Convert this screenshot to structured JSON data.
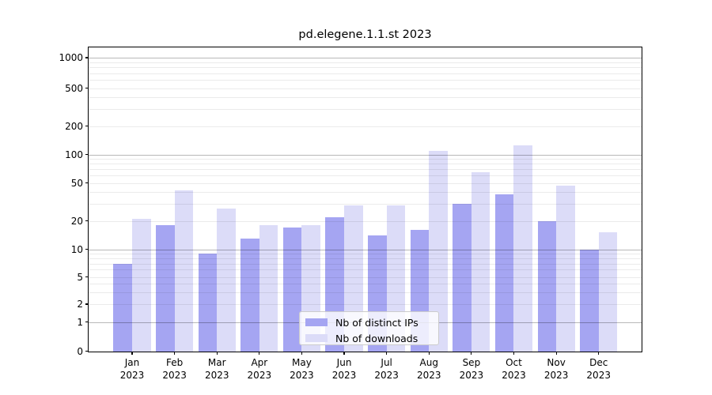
{
  "chart_data": {
    "type": "bar",
    "title": "pd.elegene.1.1.st 2023",
    "xlabel": "",
    "ylabel": "",
    "year": "2023",
    "categories": [
      "Jan",
      "Feb",
      "Mar",
      "Apr",
      "May",
      "Jun",
      "Jul",
      "Aug",
      "Sep",
      "Oct",
      "Nov",
      "Dec"
    ],
    "series": [
      {
        "name": "Nb of distinct IPs",
        "color": "#a5a5f2",
        "values": [
          7,
          18,
          9,
          13,
          17,
          22,
          14,
          16,
          30,
          38,
          20,
          10
        ]
      },
      {
        "name": "Nb of downloads",
        "color": "#dcdcf8",
        "values": [
          21,
          42,
          27,
          18,
          18,
          29,
          29,
          110,
          65,
          125,
          47,
          15
        ]
      }
    ],
    "y_ticks": [
      0,
      1,
      2,
      5,
      10,
      20,
      50,
      100,
      200,
      500,
      1000
    ],
    "y_scale": "symlog",
    "ylim": [
      0,
      1300
    ],
    "grid": true,
    "legend_position": "lower center",
    "colors": {
      "background": "#ffffff",
      "axis": "#000000",
      "grid_major": "#c2c2c2",
      "grid_minor": "#ebebeb",
      "text": "#000000"
    }
  }
}
